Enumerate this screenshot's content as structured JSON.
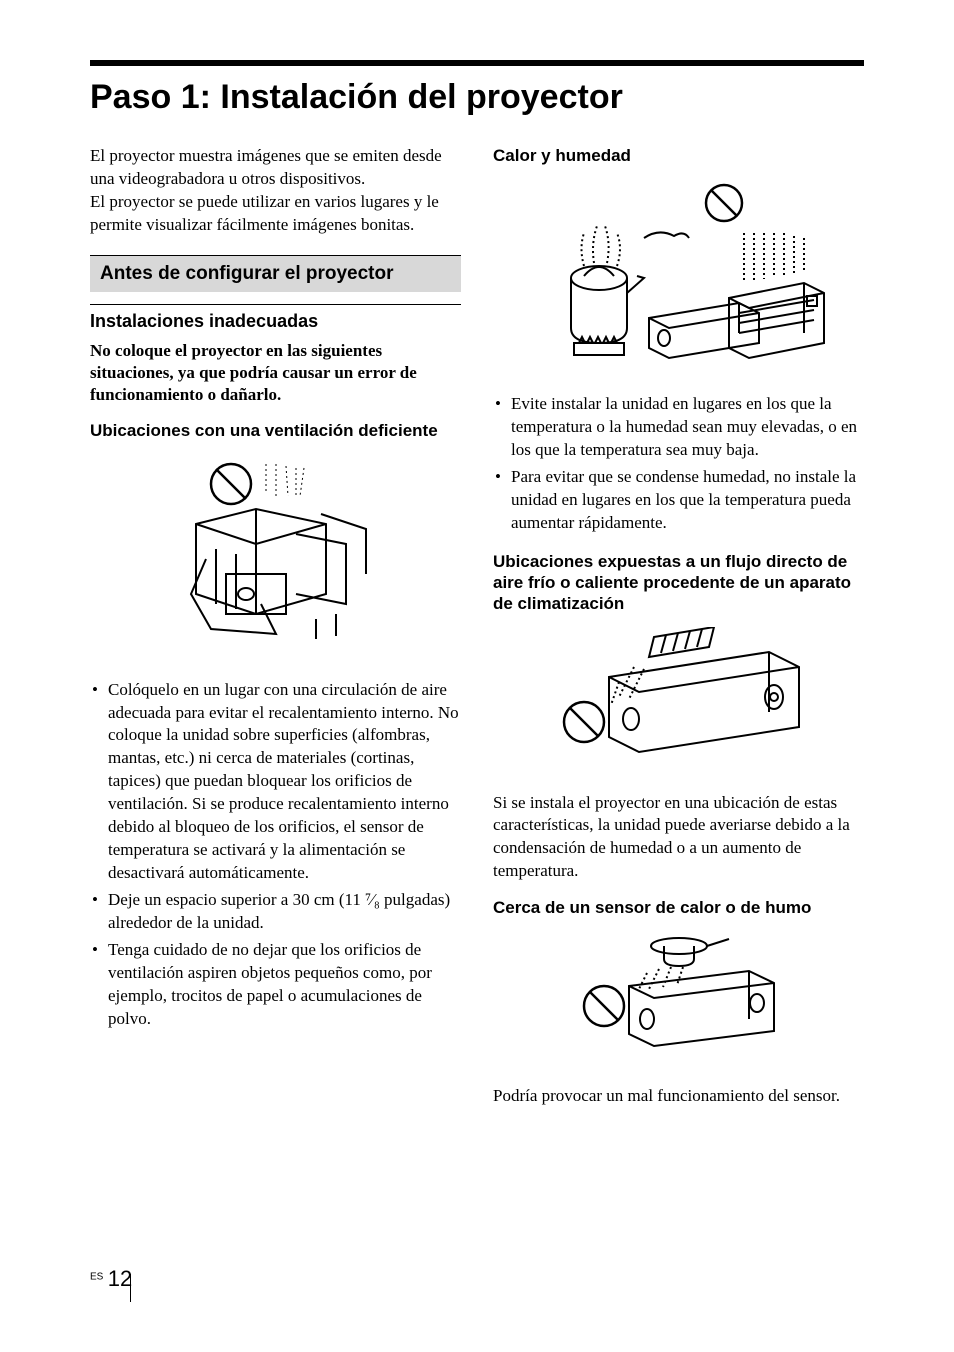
{
  "title": "Paso 1: Instalación del proyector",
  "intro": "El proyector muestra imágenes que se emiten desde una videograbadora u otros dispositivos.\nEl proyector se puede utilizar en varios lugares y le permite visualizar fácilmente imágenes bonitas.",
  "section_header": "Antes de configurar el proyector",
  "subheading": "Instalaciones inadecuadas",
  "warning": "No coloque el proyector en las siguientes situaciones, ya que podría causar un error de funcionamiento o dañarlo.",
  "ventilation_heading": "Ubicaciones con una ventilación deficiente",
  "ventilation_bullets": [
    "Colóquelo en un lugar con una circulación de aire adecuada para evitar el recalentamiento interno. No coloque la unidad sobre superficies (alfombras, mantas, etc.) ni cerca de materiales (cortinas, tapices) que puedan bloquear los orificios de ventilación. Si se produce recalentamiento interno debido al bloqueo de los orificios, el sensor de temperatura se activará y la alimentación se desactivará automáticamente.",
    "Deje un espacio superior a 30 cm (11 ⁷⁄₈ pulgadas) alrededor de la unidad.",
    "Tenga cuidado de no dejar que los orificios de ventilación aspiren objetos pequeños como, por ejemplo, trocitos de papel o acumulaciones de polvo."
  ],
  "heat_heading": "Calor y humedad",
  "heat_bullets": [
    "Evite instalar la unidad en lugares en los que la temperatura o la humedad sean muy elevadas, o en los que la temperatura sea muy baja.",
    "Para evitar que se condense humedad, no instale la unidad en lugares en los que la temperatura pueda aumentar rápidamente."
  ],
  "airflow_heading": "Ubicaciones expuestas a un flujo directo de aire frío o caliente procedente de un aparato de climatización",
  "airflow_para": "Si se instala el proyector en una ubicación de estas características, la unidad puede averiarse debido a la condensación de humedad o a un aumento de temperatura.",
  "sensor_heading": "Cerca de un sensor de calor o de humo",
  "sensor_para": "Podría provocar un mal funcionamiento del sensor.",
  "page_lang": "ES",
  "page_num": "12"
}
